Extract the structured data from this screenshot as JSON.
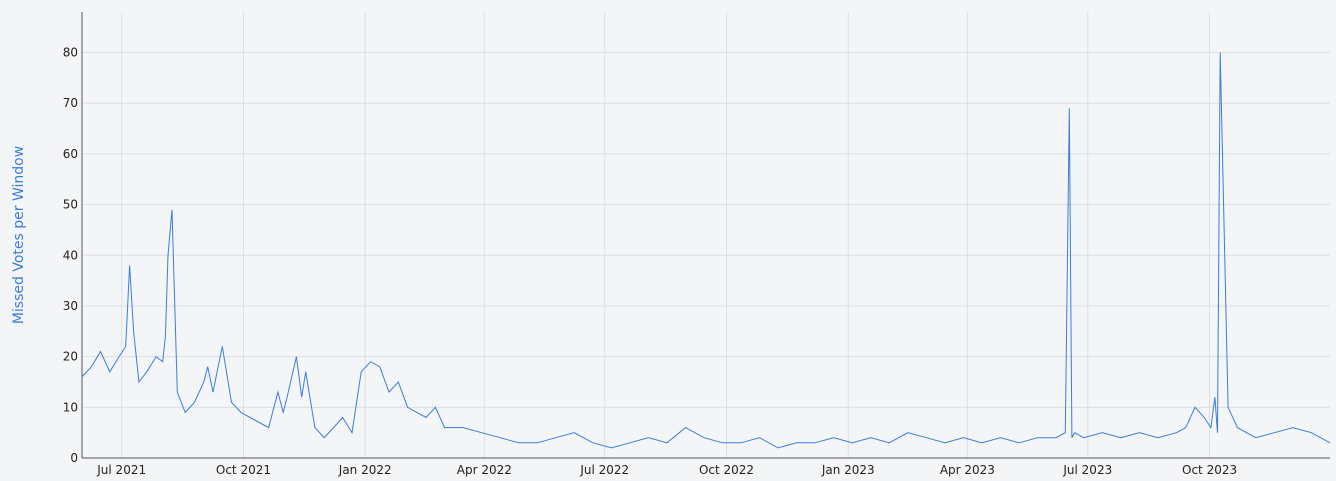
{
  "chart_data": {
    "type": "line",
    "title": "",
    "xlabel": "",
    "ylabel": "Missed Votes per Window",
    "x_range": [
      "2021-06-01",
      "2023-12-31"
    ],
    "ylim": [
      0,
      88
    ],
    "grid": true,
    "line_color": "#3b7ddd",
    "ylabel_color": "#3b7ddd",
    "x_ticks": [
      {
        "date": "2021-07-01",
        "label": "Jul 2021"
      },
      {
        "date": "2021-10-01",
        "label": "Oct 2021"
      },
      {
        "date": "2022-01-01",
        "label": "Jan 2022"
      },
      {
        "date": "2022-04-01",
        "label": "Apr 2022"
      },
      {
        "date": "2022-07-01",
        "label": "Jul 2022"
      },
      {
        "date": "2022-10-01",
        "label": "Oct 2022"
      },
      {
        "date": "2023-01-01",
        "label": "Jan 2023"
      },
      {
        "date": "2023-04-01",
        "label": "Apr 2023"
      },
      {
        "date": "2023-07-01",
        "label": "Jul 2023"
      },
      {
        "date": "2023-10-01",
        "label": "Oct 2023"
      }
    ],
    "y_ticks": [
      0,
      10,
      20,
      30,
      40,
      50,
      60,
      70,
      80
    ],
    "series": [
      {
        "x": [
          "2021-06-01",
          "2021-06-08",
          "2021-06-15",
          "2021-06-22",
          "2021-06-29",
          "2021-07-04",
          "2021-07-07",
          "2021-07-10",
          "2021-07-14",
          "2021-07-20",
          "2021-07-27",
          "2021-08-01",
          "2021-08-03",
          "2021-08-05",
          "2021-08-08",
          "2021-08-12",
          "2021-08-18",
          "2021-08-25",
          "2021-09-01",
          "2021-09-04",
          "2021-09-08",
          "2021-09-15",
          "2021-09-22",
          "2021-09-29",
          "2021-10-06",
          "2021-10-13",
          "2021-10-20",
          "2021-10-27",
          "2021-10-31",
          "2021-11-03",
          "2021-11-10",
          "2021-11-14",
          "2021-11-17",
          "2021-11-24",
          "2021-12-01",
          "2021-12-08",
          "2021-12-15",
          "2021-12-22",
          "2021-12-29",
          "2022-01-05",
          "2022-01-12",
          "2022-01-19",
          "2022-01-26",
          "2022-02-02",
          "2022-02-09",
          "2022-02-16",
          "2022-02-23",
          "2022-03-02",
          "2022-03-16",
          "2022-03-30",
          "2022-04-13",
          "2022-04-27",
          "2022-05-11",
          "2022-05-25",
          "2022-06-08",
          "2022-06-22",
          "2022-07-06",
          "2022-07-20",
          "2022-08-03",
          "2022-08-17",
          "2022-08-31",
          "2022-09-14",
          "2022-09-28",
          "2022-10-12",
          "2022-10-26",
          "2022-11-09",
          "2022-11-23",
          "2022-12-07",
          "2022-12-21",
          "2023-01-04",
          "2023-01-18",
          "2023-02-01",
          "2023-02-15",
          "2023-03-01",
          "2023-03-15",
          "2023-03-29",
          "2023-04-12",
          "2023-04-26",
          "2023-05-10",
          "2023-05-24",
          "2023-06-07",
          "2023-06-14",
          "2023-06-17",
          "2023-06-19",
          "2023-06-21",
          "2023-06-28",
          "2023-07-12",
          "2023-07-26",
          "2023-08-09",
          "2023-08-23",
          "2023-09-06",
          "2023-09-13",
          "2023-09-20",
          "2023-09-27",
          "2023-10-02",
          "2023-10-05",
          "2023-10-07",
          "2023-10-09",
          "2023-10-15",
          "2023-10-22",
          "2023-10-29",
          "2023-11-05",
          "2023-11-19",
          "2023-12-03",
          "2023-12-17",
          "2023-12-31"
        ],
        "y": [
          16,
          18,
          21,
          17,
          20,
          22,
          38,
          25,
          15,
          17,
          20,
          19,
          24,
          40,
          49,
          13,
          9,
          11,
          15,
          18,
          13,
          22,
          11,
          9,
          8,
          7,
          6,
          13,
          9,
          12,
          20,
          12,
          17,
          6,
          4,
          6,
          8,
          5,
          17,
          19,
          18,
          13,
          15,
          10,
          9,
          8,
          10,
          6,
          6,
          5,
          4,
          3,
          3,
          4,
          5,
          3,
          2,
          3,
          4,
          3,
          6,
          4,
          3,
          3,
          4,
          2,
          3,
          3,
          4,
          3,
          4,
          3,
          5,
          4,
          3,
          4,
          3,
          4,
          3,
          4,
          4,
          5,
          69,
          4,
          5,
          4,
          5,
          4,
          5,
          4,
          5,
          6,
          10,
          8,
          6,
          12,
          5,
          80,
          10,
          6,
          5,
          4,
          5,
          6,
          5,
          3
        ]
      }
    ]
  }
}
